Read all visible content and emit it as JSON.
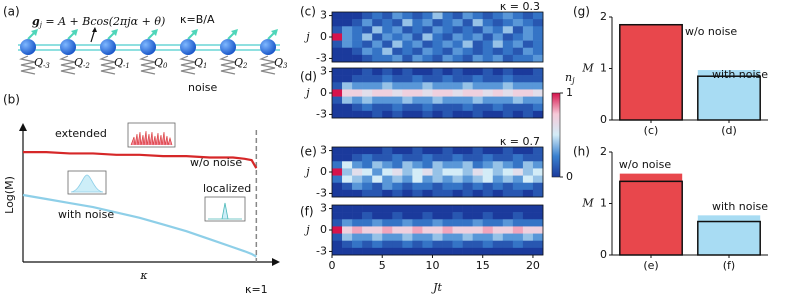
{
  "schematic": {
    "label": "(a)",
    "formula_symbol": "g",
    "formula_sub": "j",
    "formula_rhs": " = A + Bcos(2πjα + θ)",
    "ratio": "κ=B/A",
    "qubit_symbol": "Q",
    "qubits": [
      "-3",
      "-2",
      "-1",
      "0",
      "1",
      "2",
      "3"
    ],
    "noise": "noise"
  },
  "colorbar": {
    "label": "n",
    "label_sub": "j",
    "ticks": [
      0,
      1
    ],
    "clim": [
      0,
      1
    ],
    "colors": [
      "#1b3a9c",
      "#3b82d0",
      "#d3ecf7",
      "#f6c9d8",
      "#d6134c"
    ]
  },
  "chart_data": [
    {
      "type": "line",
      "label": "(b)",
      "xlabel": "κ",
      "ylabel": "Log(M)",
      "x": [
        0,
        0.1,
        0.2,
        0.3,
        0.4,
        0.5,
        0.6,
        0.7,
        0.8,
        0.9,
        0.95,
        0.98,
        1
      ],
      "xlim": [
        0,
        1.08
      ],
      "ylim": [
        0,
        1
      ],
      "series": [
        {
          "name": "w/o noise",
          "color": "#d62728",
          "values": [
            0.82,
            0.82,
            0.81,
            0.81,
            0.8,
            0.8,
            0.79,
            0.79,
            0.78,
            0.78,
            0.77,
            0.76,
            0.7
          ]
        },
        {
          "name": "with noise",
          "color": "#8ecfe8",
          "values": [
            0.5,
            0.47,
            0.44,
            0.41,
            0.37,
            0.33,
            0.28,
            0.23,
            0.17,
            0.11,
            0.08,
            0.06,
            0.04
          ]
        }
      ],
      "annotations": [
        "extended",
        "localized"
      ],
      "marker_line": {
        "x": 1,
        "label": "κ=1"
      }
    },
    {
      "type": "heatmap",
      "label": "(c)",
      "title": "κ = 0.3",
      "ylabel": "j",
      "y": [
        3,
        2,
        1,
        0,
        -1,
        -2,
        -3
      ],
      "x": [
        0,
        1,
        2,
        3,
        4,
        5,
        6,
        7,
        8,
        9,
        10,
        11,
        12,
        13,
        14,
        15,
        16,
        17,
        18,
        19,
        20
      ],
      "xlim": [
        0,
        21
      ],
      "ylim": [
        -3.5,
        3.5
      ],
      "yticks": [
        -3,
        0,
        3
      ],
      "values": [
        [
          0,
          0,
          0,
          0.1,
          0.2,
          0.1,
          0.3,
          0.2,
          0.1,
          0.2,
          0.4,
          0.2,
          0.1,
          0.3,
          0.2,
          0.1,
          0.2,
          0.3,
          0.2,
          0.1,
          0.2
        ],
        [
          0,
          0,
          0.1,
          0.3,
          0.1,
          0.2,
          0.1,
          0.4,
          0.2,
          0.3,
          0.1,
          0.2,
          0.3,
          0.1,
          0.4,
          0.2,
          0.1,
          0.2,
          0.3,
          0.2,
          0.1
        ],
        [
          0.1,
          0.3,
          0.2,
          0.1,
          0.4,
          0.2,
          0.3,
          0.1,
          0.2,
          0.1,
          0.3,
          0.2,
          0.1,
          0.2,
          0.1,
          0.3,
          0.2,
          0.4,
          0.1,
          0.3,
          0.2
        ],
        [
          1,
          0.3,
          0.2,
          0.4,
          0.1,
          0.3,
          0.2,
          0.3,
          0.1,
          0.4,
          0.2,
          0.1,
          0.3,
          0.2,
          0.3,
          0.1,
          0.3,
          0.1,
          0.2,
          0.3,
          0.2
        ],
        [
          0.1,
          0.3,
          0.2,
          0.1,
          0.3,
          0.1,
          0.4,
          0.2,
          0.3,
          0.1,
          0.2,
          0.3,
          0.2,
          0.4,
          0.1,
          0.2,
          0.4,
          0.2,
          0.3,
          0.1,
          0.2
        ],
        [
          0,
          0,
          0.1,
          0.3,
          0.2,
          0.4,
          0.1,
          0.2,
          0.1,
          0.3,
          0.2,
          0.1,
          0.3,
          0.2,
          0.1,
          0.2,
          0.1,
          0.2,
          0.1,
          0.3,
          0.2
        ],
        [
          0,
          0,
          0,
          0.1,
          0.2,
          0.2,
          0.3,
          0.1,
          0.3,
          0.2,
          0.1,
          0.3,
          0.2,
          0.1,
          0.3,
          0.2,
          0.3,
          0.1,
          0.2,
          0.2,
          0.3
        ]
      ]
    },
    {
      "type": "heatmap",
      "label": "(d)",
      "ylabel": "j",
      "y": [
        3,
        2,
        1,
        0,
        -1,
        -2,
        -3
      ],
      "x": [
        0,
        1,
        2,
        3,
        4,
        5,
        6,
        7,
        8,
        9,
        10,
        11,
        12,
        13,
        14,
        15,
        16,
        17,
        18,
        19,
        20
      ],
      "xlim": [
        0,
        21
      ],
      "ylim": [
        -3.5,
        3.5
      ],
      "yticks": [
        -3,
        0,
        3
      ],
      "values": [
        [
          0,
          0,
          0,
          0.1,
          0,
          0.1,
          0,
          0.1,
          0,
          0,
          0.1,
          0,
          0.1,
          0,
          0,
          0.1,
          0,
          0.1,
          0,
          0,
          0.1
        ],
        [
          0,
          0,
          0.1,
          0.1,
          0.1,
          0.2,
          0.1,
          0.1,
          0.2,
          0.1,
          0.1,
          0.2,
          0.1,
          0.1,
          0.2,
          0.1,
          0.1,
          0.2,
          0.1,
          0.1,
          0.1
        ],
        [
          0.1,
          0.4,
          0.3,
          0.3,
          0.3,
          0.4,
          0.3,
          0.3,
          0.3,
          0.4,
          0.3,
          0.3,
          0.3,
          0.4,
          0.3,
          0.3,
          0.3,
          0.4,
          0.3,
          0.3,
          0.3
        ],
        [
          1,
          0.7,
          0.7,
          0.6,
          0.7,
          0.7,
          0.6,
          0.7,
          0.7,
          0.6,
          0.7,
          0.7,
          0.6,
          0.7,
          0.7,
          0.6,
          0.7,
          0.6,
          0.7,
          0.7,
          0.6
        ],
        [
          0.1,
          0.4,
          0.3,
          0.4,
          0.3,
          0.3,
          0.3,
          0.4,
          0.3,
          0.3,
          0.4,
          0.3,
          0.3,
          0.3,
          0.4,
          0.3,
          0.3,
          0.3,
          0.4,
          0.3,
          0.3
        ],
        [
          0,
          0,
          0.1,
          0.2,
          0.1,
          0.1,
          0.2,
          0.1,
          0.1,
          0.2,
          0.1,
          0.1,
          0.1,
          0.2,
          0.1,
          0.1,
          0.2,
          0.1,
          0.1,
          0.1,
          0.2
        ],
        [
          0,
          0,
          0,
          0,
          0.1,
          0,
          0.1,
          0,
          0,
          0.1,
          0,
          0.1,
          0,
          0,
          0.1,
          0,
          0,
          0.1,
          0,
          0.1,
          0
        ]
      ]
    },
    {
      "type": "heatmap",
      "label": "(e)",
      "title": "κ = 0.7",
      "ylabel": "j",
      "y": [
        3,
        2,
        1,
        0,
        -1,
        -2,
        -3
      ],
      "x": [
        0,
        1,
        2,
        3,
        4,
        5,
        6,
        7,
        8,
        9,
        10,
        11,
        12,
        13,
        14,
        15,
        16,
        17,
        18,
        19,
        20
      ],
      "xlim": [
        0,
        21
      ],
      "ylim": [
        -3.5,
        3.5
      ],
      "yticks": [
        -3,
        0,
        3
      ],
      "values": [
        [
          0,
          0,
          0,
          0,
          0,
          0.1,
          0,
          0,
          0.1,
          0,
          0,
          0.1,
          0,
          0,
          0.1,
          0,
          0,
          0.1,
          0,
          0,
          0.1
        ],
        [
          0,
          0,
          0.1,
          0.2,
          0.1,
          0.1,
          0.2,
          0.1,
          0.1,
          0.2,
          0.1,
          0.1,
          0.2,
          0.1,
          0.1,
          0.2,
          0.1,
          0.1,
          0.2,
          0.1,
          0.1
        ],
        [
          0.2,
          0.5,
          0.3,
          0.2,
          0.4,
          0.3,
          0.2,
          0.4,
          0.3,
          0.2,
          0.4,
          0.3,
          0.3,
          0.4,
          0.2,
          0.3,
          0.4,
          0.3,
          0.2,
          0.4,
          0.3
        ],
        [
          1,
          0.4,
          0.6,
          0.5,
          0.3,
          0.5,
          0.6,
          0.4,
          0.5,
          0.6,
          0.4,
          0.5,
          0.5,
          0.4,
          0.6,
          0.5,
          0.4,
          0.5,
          0.6,
          0.4,
          0.5
        ],
        [
          0.2,
          0.5,
          0.4,
          0.3,
          0.5,
          0.3,
          0.4,
          0.3,
          0.5,
          0.3,
          0.4,
          0.3,
          0.4,
          0.3,
          0.4,
          0.5,
          0.3,
          0.4,
          0.3,
          0.5,
          0.4
        ],
        [
          0,
          0.1,
          0.3,
          0.2,
          0.1,
          0.3,
          0.2,
          0.1,
          0.2,
          0.2,
          0.1,
          0.2,
          0.2,
          0.1,
          0.2,
          0.1,
          0.2,
          0.1,
          0.2,
          0.2,
          0.1
        ],
        [
          0,
          0,
          0,
          0.1,
          0.1,
          0,
          0.1,
          0,
          0.1,
          0,
          0.1,
          0.1,
          0,
          0.1,
          0,
          0.1,
          0,
          0.1,
          0.1,
          0,
          0.1
        ]
      ]
    },
    {
      "type": "heatmap",
      "label": "(f)",
      "ylabel": "j",
      "xlabel": "Jt",
      "y": [
        3,
        2,
        1,
        0,
        -1,
        -2,
        -3
      ],
      "x": [
        0,
        1,
        2,
        3,
        4,
        5,
        6,
        7,
        8,
        9,
        10,
        11,
        12,
        13,
        14,
        15,
        16,
        17,
        18,
        19,
        20
      ],
      "xlim": [
        0,
        21
      ],
      "ylim": [
        -3.5,
        3.5
      ],
      "yticks": [
        -3,
        0,
        3
      ],
      "xticks": [
        0,
        5,
        10,
        15,
        20
      ],
      "values": [
        [
          0,
          0,
          0,
          0,
          0,
          0,
          0,
          0,
          0,
          0,
          0,
          0,
          0,
          0,
          0,
          0,
          0,
          0,
          0,
          0,
          0
        ],
        [
          0,
          0,
          0,
          0.1,
          0,
          0,
          0.1,
          0,
          0,
          0.1,
          0,
          0,
          0.1,
          0,
          0,
          0.1,
          0,
          0,
          0.1,
          0,
          0
        ],
        [
          0.1,
          0.3,
          0.2,
          0.2,
          0.3,
          0.2,
          0.2,
          0.3,
          0.2,
          0.2,
          0.3,
          0.2,
          0.2,
          0.2,
          0.3,
          0.2,
          0.2,
          0.3,
          0.2,
          0.2,
          0.2
        ],
        [
          1,
          0.7,
          0.8,
          0.7,
          0.7,
          0.8,
          0.7,
          0.7,
          0.8,
          0.7,
          0.7,
          0.8,
          0.7,
          0.7,
          0.7,
          0.8,
          0.7,
          0.7,
          0.8,
          0.7,
          0.7
        ],
        [
          0.1,
          0.4,
          0.3,
          0.3,
          0.4,
          0.3,
          0.3,
          0.4,
          0.3,
          0.3,
          0.4,
          0.3,
          0.3,
          0.4,
          0.3,
          0.3,
          0.4,
          0.3,
          0.3,
          0.4,
          0.3
        ],
        [
          0,
          0.1,
          0.2,
          0.1,
          0.2,
          0.1,
          0.1,
          0.2,
          0.1,
          0.2,
          0.1,
          0.1,
          0.2,
          0.1,
          0.1,
          0.2,
          0.1,
          0.1,
          0.2,
          0.1,
          0.1
        ],
        [
          0,
          0,
          0,
          0,
          0,
          0,
          0,
          0,
          0,
          0,
          0,
          0,
          0,
          0,
          0,
          0,
          0,
          0,
          0,
          0,
          0
        ]
      ]
    },
    {
      "type": "bar",
      "label": "(g)",
      "ylabel": "M",
      "categories": [
        "(c)",
        "(d)"
      ],
      "values": [
        1.85,
        0.97
      ],
      "outline_values": [
        1.85,
        0.85
      ],
      "colors": [
        "#e8474c",
        "#a8dcf3"
      ],
      "annotations": [
        "w/o noise",
        "with noise"
      ],
      "ylim": [
        0,
        2
      ],
      "yticks": [
        0,
        1,
        2
      ]
    },
    {
      "type": "bar",
      "label": "(h)",
      "ylabel": "M",
      "categories": [
        "(e)",
        "(f)"
      ],
      "values": [
        1.58,
        0.77
      ],
      "outline_values": [
        1.43,
        0.65
      ],
      "colors": [
        "#e8474c",
        "#a8dcf3"
      ],
      "annotations": [
        "w/o noise",
        "with noise"
      ],
      "ylim": [
        0,
        2
      ],
      "yticks": [
        0,
        1,
        2
      ]
    }
  ]
}
